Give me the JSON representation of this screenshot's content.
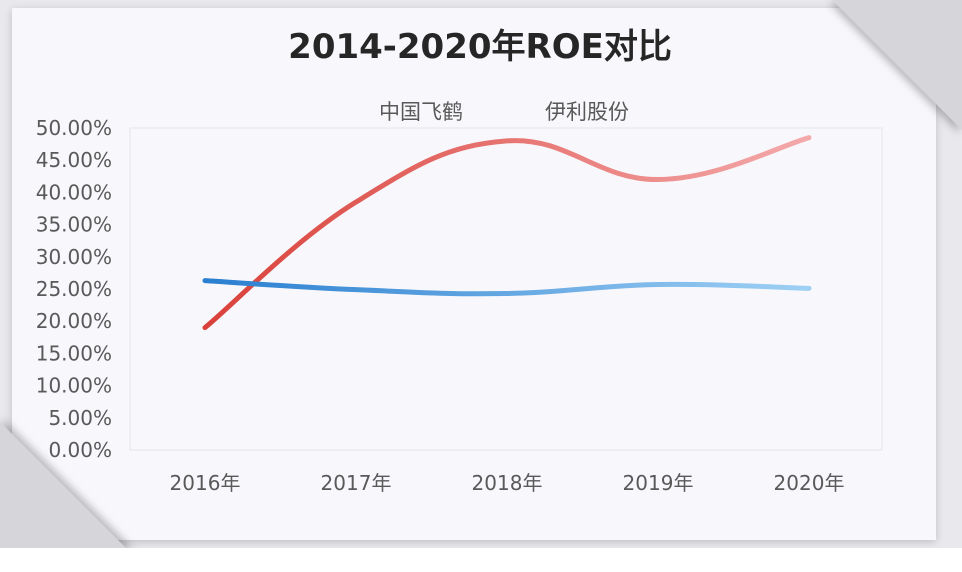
{
  "chart_data": {
    "type": "line",
    "title": "2014-2020年ROE对比",
    "categories": [
      "2016年",
      "2017年",
      "2018年",
      "2019年",
      "2020年"
    ],
    "y_ticks": [
      "0.00%",
      "5.00%",
      "10.00%",
      "15.00%",
      "20.00%",
      "25.00%",
      "30.00%",
      "35.00%",
      "40.00%",
      "45.00%",
      "50.00%"
    ],
    "ylim": [
      0,
      50
    ],
    "y_unit": "%",
    "smooth": true,
    "grid": false,
    "legend_position": "top",
    "series": [
      {
        "name": "中国飞鹤",
        "values": [
          19.0,
          38.5,
          48.0,
          42.0,
          48.5
        ],
        "color_start": "#d9413a",
        "color_end": "#f4a9aa"
      },
      {
        "name": "伊利股份",
        "values": [
          26.3,
          24.9,
          24.3,
          25.7,
          25.1
        ],
        "color_start": "#2a7fd0",
        "color_end": "#9fd0f4"
      }
    ]
  }
}
